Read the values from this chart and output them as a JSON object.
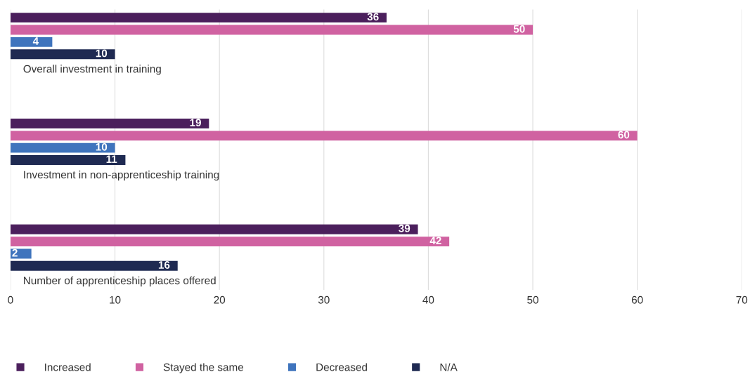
{
  "chart_data": {
    "type": "bar",
    "orientation": "horizontal",
    "categories": [
      "Overall investment in training",
      "Investment in non-apprenticeship training",
      "Number of apprenticeship places offered"
    ],
    "series": [
      {
        "name": "Increased",
        "color": "#4b1f5c",
        "values": [
          36,
          19,
          39
        ]
      },
      {
        "name": "Stayed the same",
        "color": "#d062a1",
        "values": [
          50,
          60,
          42
        ]
      },
      {
        "name": "Decreased",
        "color": "#3f74bd",
        "values": [
          4,
          10,
          2
        ]
      },
      {
        "name": "N/A",
        "color": "#1f2a52",
        "values": [
          10,
          11,
          16
        ]
      }
    ],
    "xlim": [
      0,
      70
    ],
    "xticks": [
      0,
      10,
      20,
      30,
      40,
      50,
      60,
      70
    ],
    "grid": "x",
    "legend": "bottom left",
    "data_labels": true
  }
}
